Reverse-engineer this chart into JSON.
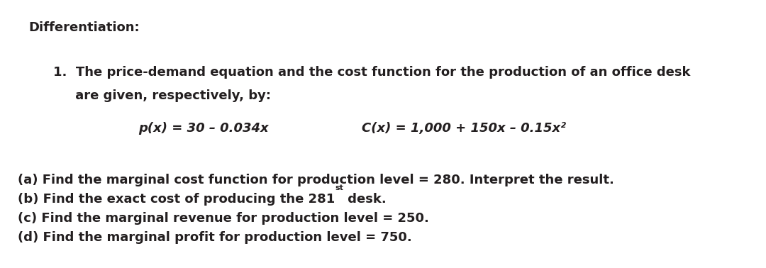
{
  "title": "Differentiation:",
  "item1_line1": "1.  The price-demand equation and the cost function for the production of an office desk",
  "item1_line2": "     are given, respectively, by:",
  "formula_px": "p(x) = 30 – 0.034x",
  "formula_cx": "C(x) = 1,000 + 150x – 0.15x²",
  "part_a": "(a) Find the marginal cost function for production level = 280. Interpret the result.",
  "part_b_base": "(b) Find the exact cost of producing the 281",
  "part_b_super": "st",
  "part_b_rest": " desk.",
  "part_c": "(c) Find the marginal revenue for production level = 250.",
  "part_d": "(d) Find the marginal profit for production level = 750.",
  "bg_color": "#ffffff",
  "text_color": "#231f20",
  "fontsize": 13.0,
  "formula_fontsize": 13.0
}
